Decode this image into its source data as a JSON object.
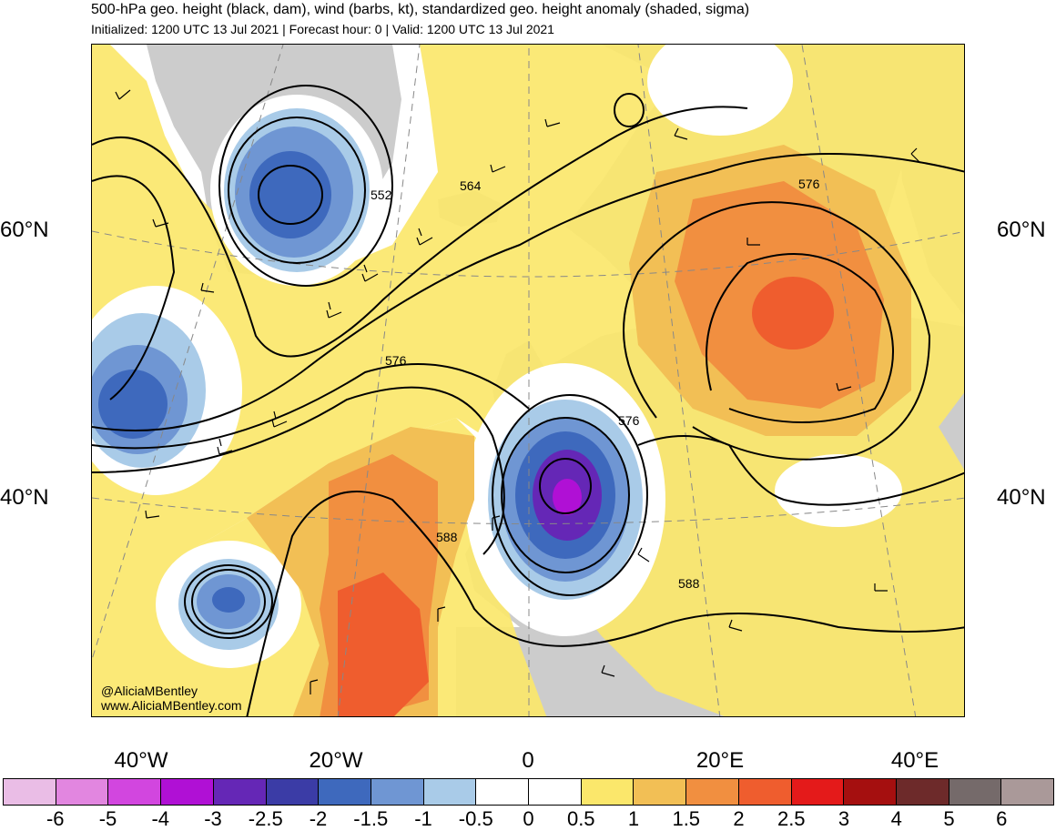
{
  "header": {
    "title": "500-hPa geo. height (black, dam), wind (barbs, kt), standardized geo. height anomaly (shaded, sigma)",
    "subtitle": "Initialized: 1200 UTC 13 Jul 2021 | Forecast hour: 0 | Valid: 1200 UTC 13 Jul 2021"
  },
  "map": {
    "credit_handle": "@AliciaMBentley",
    "credit_url": "www.AliciaMBentley.com",
    "lat_labels": [
      "60°N",
      "40°N"
    ],
    "lon_labels": [
      "40°W",
      "20°W",
      "0",
      "20°E",
      "40°E"
    ],
    "contour_labels": [
      "552",
      "564",
      "576",
      "576",
      "576",
      "588",
      "588"
    ],
    "colors": {
      "land": "#cccccc",
      "coastline": "#555555",
      "contour": "#000000",
      "gridline": "#888888"
    }
  },
  "colorbar": {
    "labels": [
      "-6",
      "-5",
      "-4",
      "-3",
      "-2.5",
      "-2",
      "-1.5",
      "-1",
      "-0.5",
      "0",
      "0.5",
      "1",
      "1.5",
      "2",
      "2.5",
      "3",
      "4",
      "5",
      "6"
    ],
    "colors": [
      "#eabde6",
      "#e286e0",
      "#d246df",
      "#b010d5",
      "#6527b6",
      "#3b3ca6",
      "#3e69bd",
      "#6f96d3",
      "#a9cbe8",
      "#ffffff",
      "#ffffff",
      "#fbe76b",
      "#f2bf55",
      "#f18f40",
      "#ef5d2e",
      "#e41a1a",
      "#a50f0f",
      "#6d2a2a",
      "#756a6a",
      "#aa9999"
    ]
  }
}
